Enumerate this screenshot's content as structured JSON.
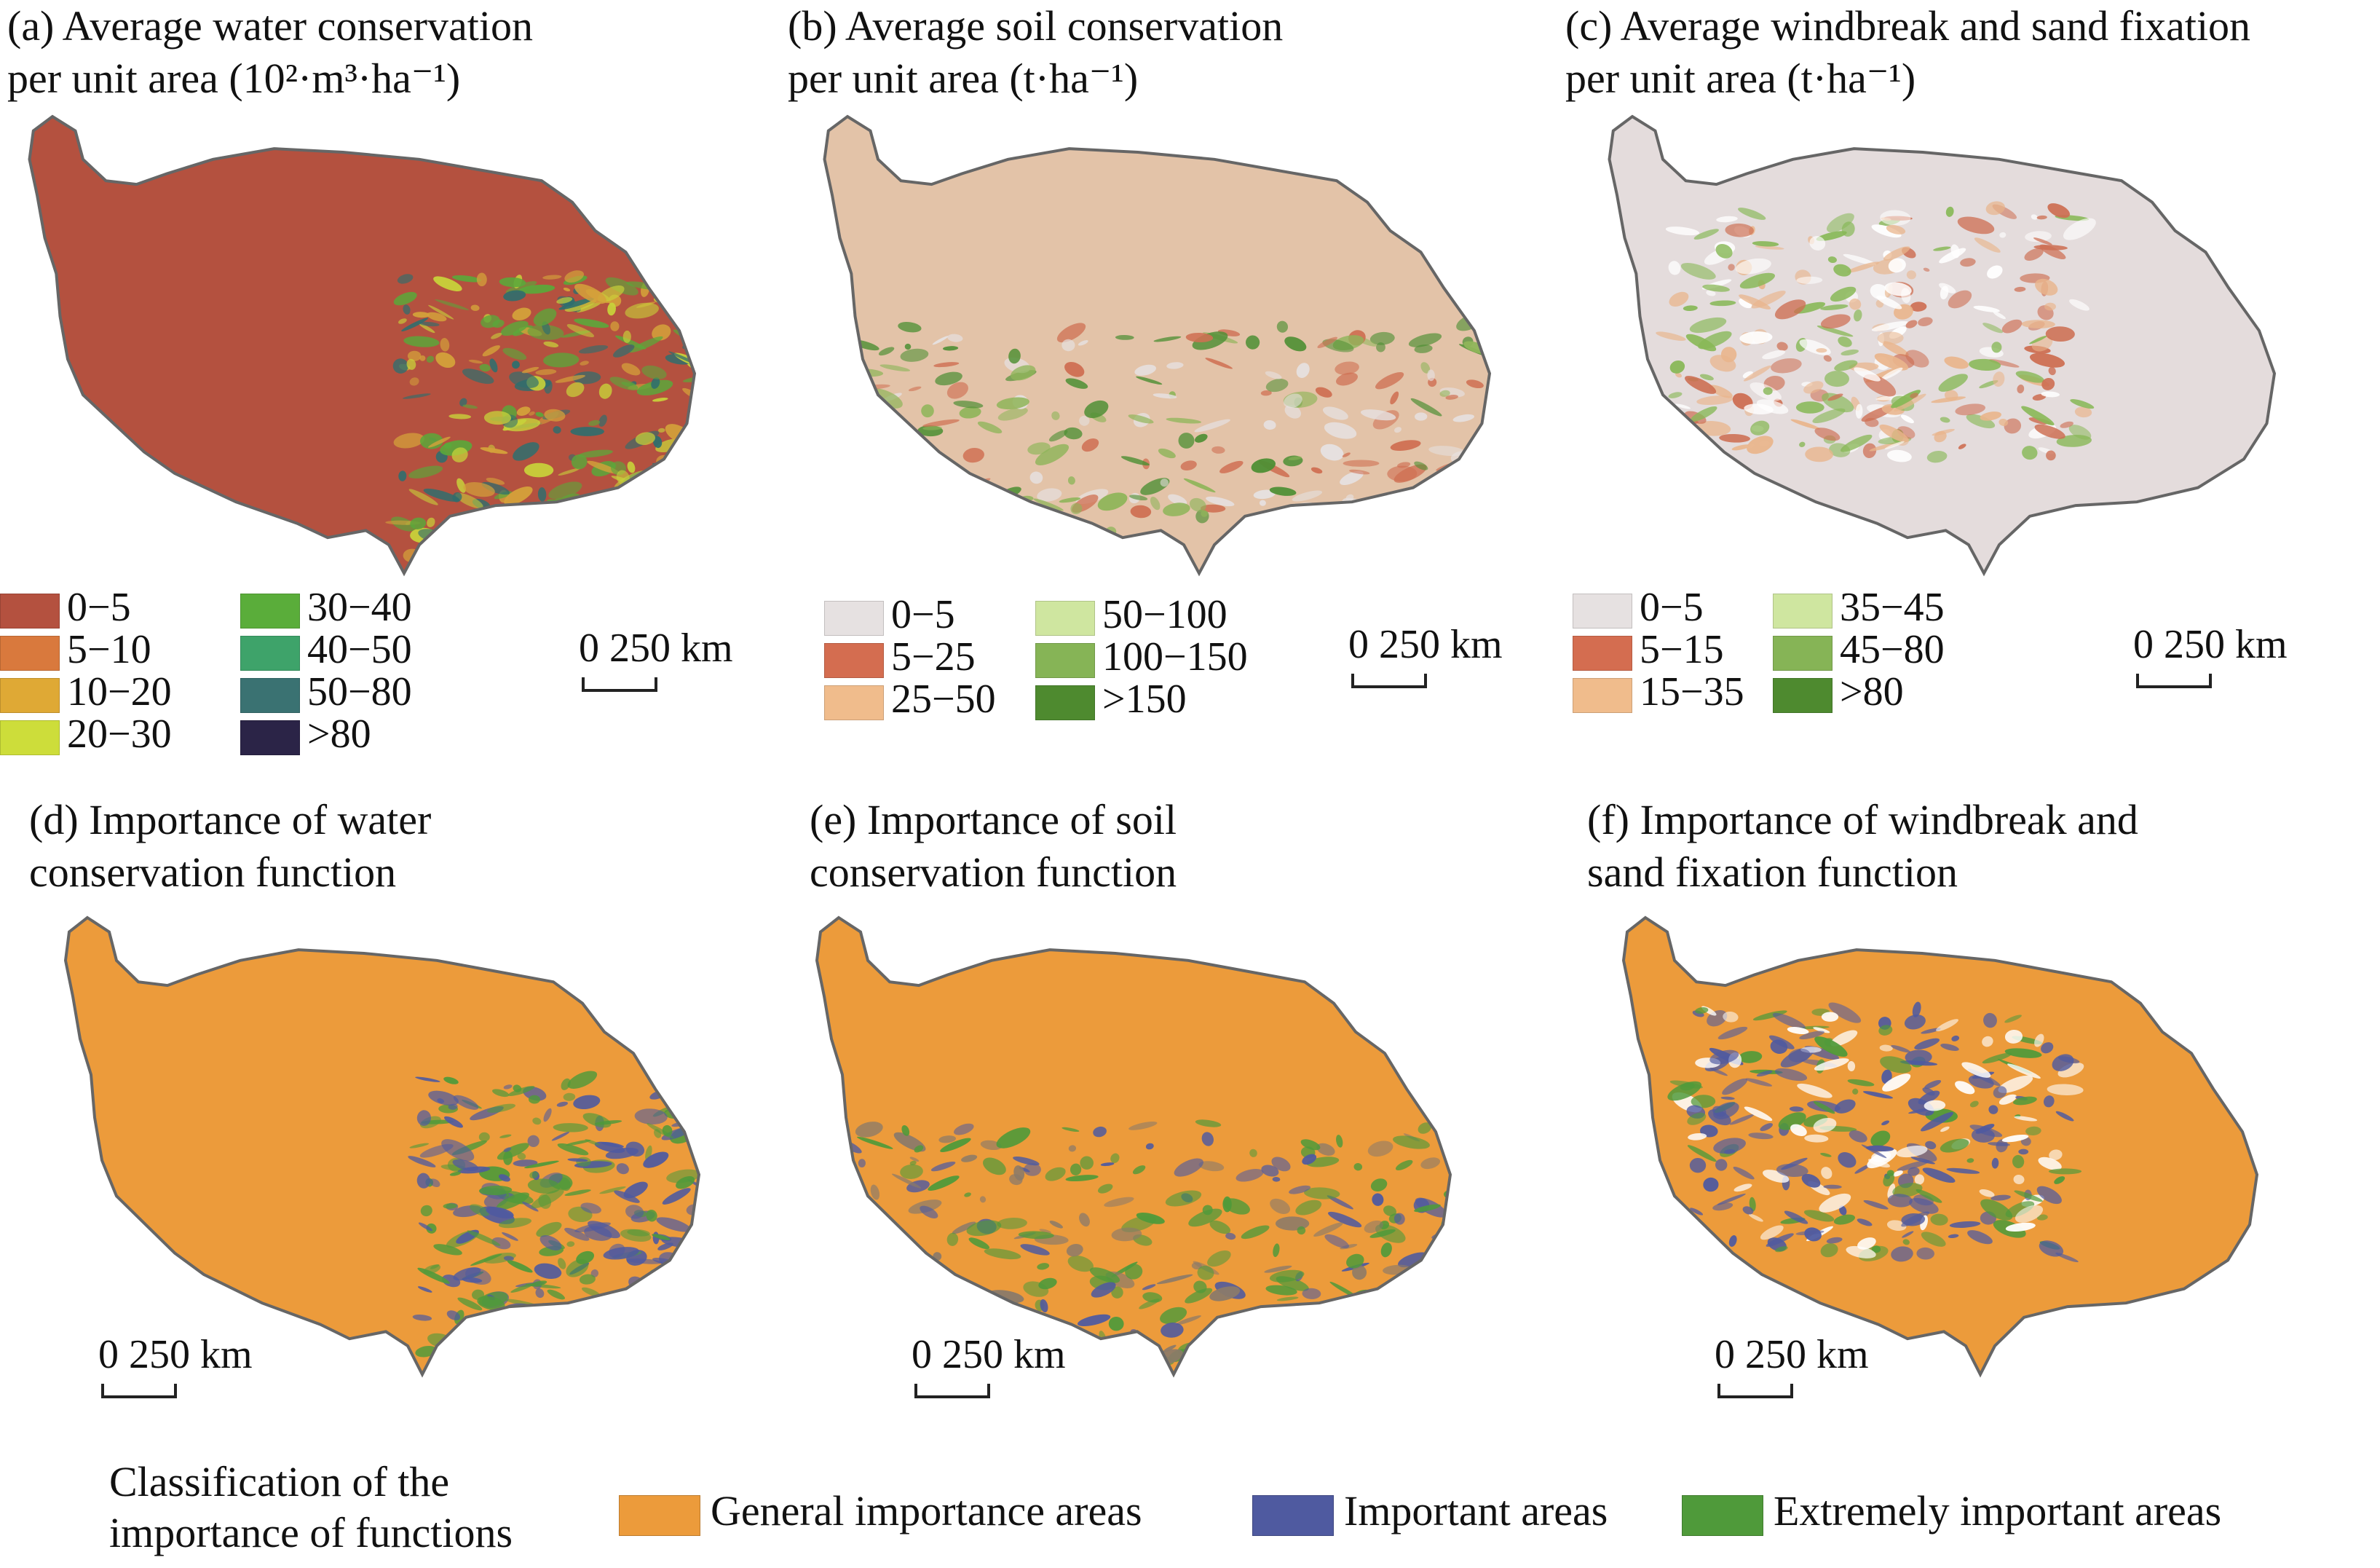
{
  "panels": [
    {
      "id": "a",
      "title_line1": "(a) Average water conservation",
      "title_line2": "per unit area (10²·m³·ha⁻¹)",
      "base_color": "#b4513f",
      "patch_colors": [
        "#d4a23a",
        "#c8d23a",
        "#5aa83a",
        "#2e6e6e"
      ],
      "legend": [
        {
          "label": "0−5",
          "color": "#b4513f"
        },
        {
          "label": "5−10",
          "color": "#d9793d"
        },
        {
          "label": "10−20",
          "color": "#dfa935"
        },
        {
          "label": "20−30",
          "color": "#cddd3a"
        },
        {
          "label": "30−40",
          "color": "#5aad3a"
        },
        {
          "label": "40−50",
          "color": "#3ea36a"
        },
        {
          "label": "50−80",
          "color": "#3a7272"
        },
        {
          "label": ">80",
          "color": "#2b2447"
        }
      ],
      "scale_label": "0 250 km"
    },
    {
      "id": "b",
      "title_line1": "(b) Average soil conservation",
      "title_line2": "per unit area (t·ha⁻¹)",
      "base_color": "#e3c3a8",
      "patch_colors": [
        "#e6e1e1",
        "#cf6f52",
        "#8fb55a",
        "#4e8f34"
      ],
      "legend": [
        {
          "label": "0−5",
          "color": "#e6e1e1"
        },
        {
          "label": "5−25",
          "color": "#d46d50"
        },
        {
          "label": "25−50",
          "color": "#f0bc8c"
        },
        {
          "label": "50−100",
          "color": "#cfe6a0"
        },
        {
          "label": "100−150",
          "color": "#86b456"
        },
        {
          "label": ">150",
          "color": "#4e8a2f"
        }
      ],
      "scale_label": "0 250 km"
    },
    {
      "id": "c",
      "title_line1": "(c) Average windbreak and sand fixation",
      "title_line2": "per unit area (t·ha⁻¹)",
      "base_color": "#e4dcdc",
      "patch_colors": [
        "#cd6e52",
        "#e9b58c",
        "#88b857",
        "#ffffff"
      ],
      "legend": [
        {
          "label": "0−5",
          "color": "#e6e1e1"
        },
        {
          "label": "5−15",
          "color": "#d46d50"
        },
        {
          "label": "15−35",
          "color": "#f0bc8c"
        },
        {
          "label": "35−45",
          "color": "#cfe6a0"
        },
        {
          "label": "45−80",
          "color": "#86b456"
        },
        {
          "label": ">80",
          "color": "#4e8a2f"
        }
      ],
      "scale_label": "0 250 km"
    },
    {
      "id": "d",
      "title_line1": "(d) Importance of water",
      "title_line2": "conservation function",
      "base_color": "#ec9b3b",
      "patch_colors": [
        "#4f5aa0",
        "#4f9a3a",
        "#4f5aa0",
        "#4f9a3a"
      ],
      "scale_label": "0 250 km"
    },
    {
      "id": "e",
      "title_line1": "(e) Importance of soil",
      "title_line2": "conservation function",
      "base_color": "#ec9b3b",
      "patch_colors": [
        "#4f5aa0",
        "#4f9a3a",
        "#8a7a6a",
        "#4f9a3a"
      ],
      "scale_label": "0 250 km"
    },
    {
      "id": "f",
      "title_line1": "(f) Importance of windbreak and",
      "title_line2": "sand fixation function",
      "base_color": "#ec9b3b",
      "patch_colors": [
        "#4f5aa0",
        "#4f9a3a",
        "#ffffff",
        "#4f5aa0"
      ],
      "scale_label": "0 250 km"
    }
  ],
  "importance_legend": {
    "title_line1": "Classification of the",
    "title_line2": "importance of  functions",
    "items": [
      {
        "label": "General importance areas",
        "color": "#ec9b3b"
      },
      {
        "label": "Important areas",
        "color": "#4f5aa0"
      },
      {
        "label": "Extremely important areas",
        "color": "#4f9a3a"
      }
    ]
  },
  "outline_color": "#666666"
}
